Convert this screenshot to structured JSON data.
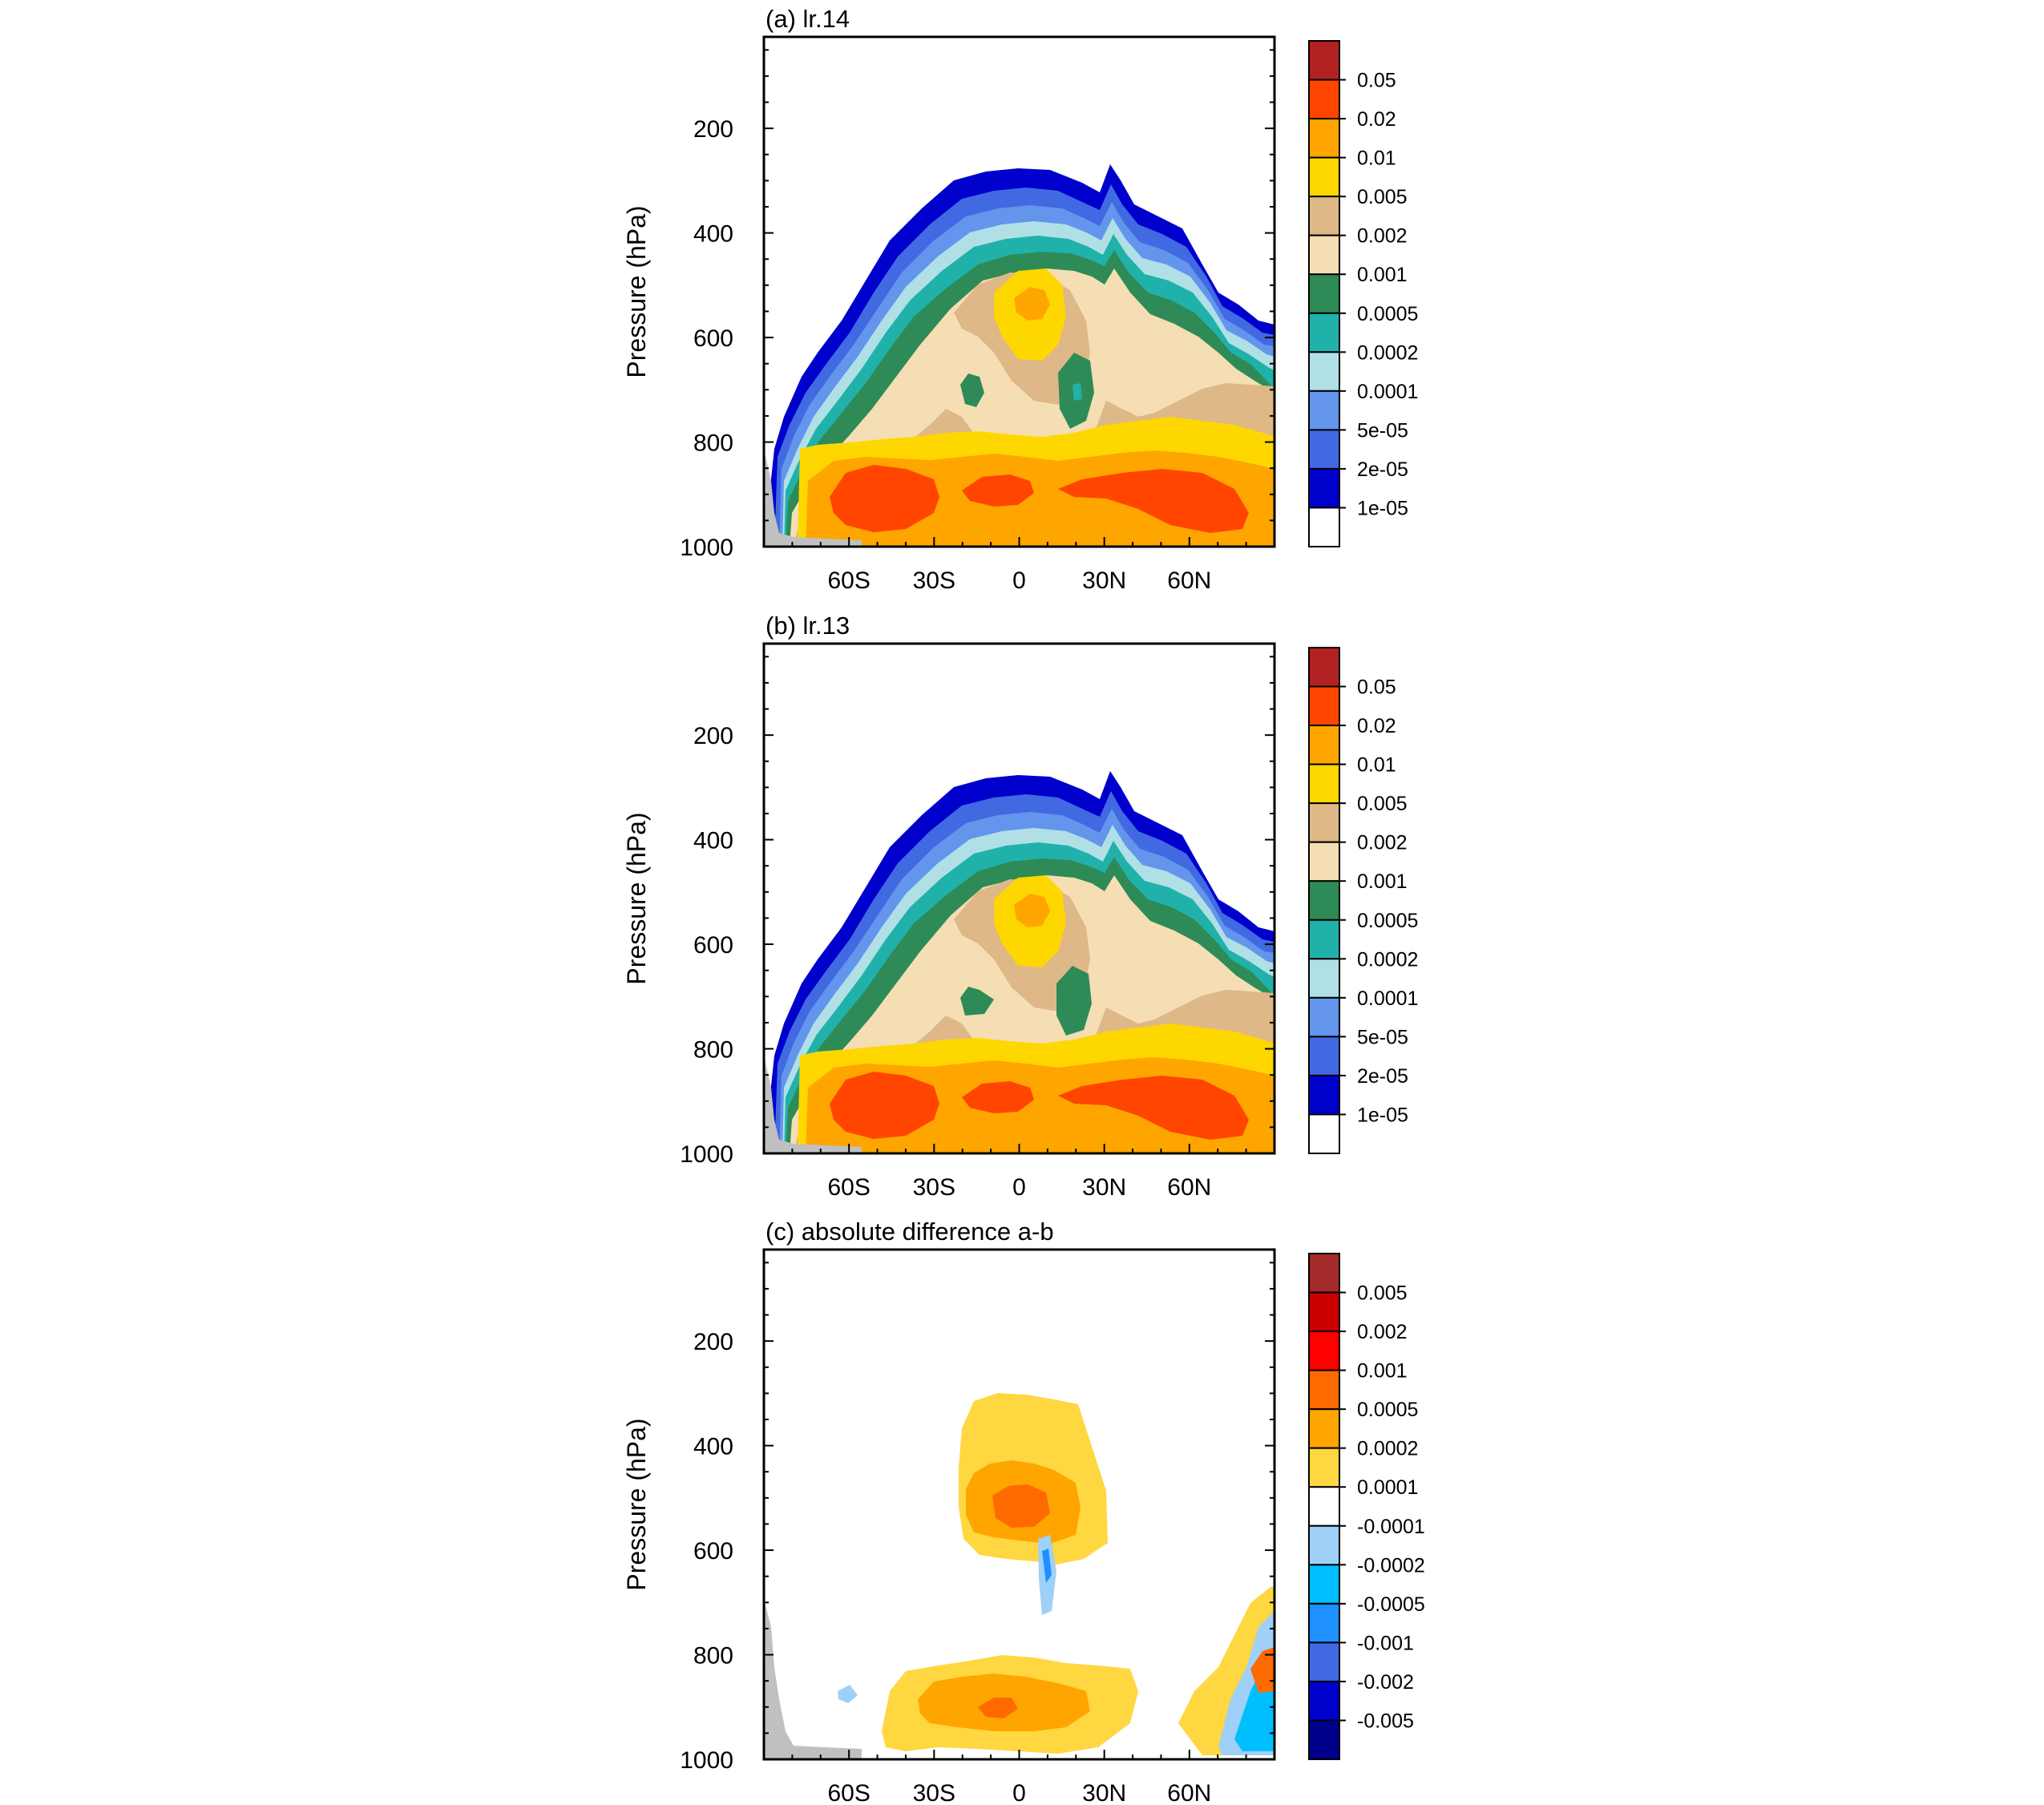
{
  "chart_data": [
    {
      "type": "heatmap",
      "title": "(a) lr.14",
      "ylabel": "Pressure (hPa)",
      "xlabel": "",
      "x_ticks": [
        "60S",
        "30S",
        "0",
        "30N",
        "60N"
      ],
      "x_tick_values": [
        -60,
        -30,
        0,
        30,
        60
      ],
      "xlim": [
        -90,
        90
      ],
      "y_ticks": [
        "200",
        "400",
        "600",
        "800",
        "1000"
      ],
      "y_tick_values": [
        200,
        400,
        600,
        800,
        1000
      ],
      "ylim": [
        25,
        1000
      ],
      "colorbar": {
        "labels": [
          "0.05",
          "0.02",
          "0.01",
          "0.005",
          "0.002",
          "0.001",
          "0.0005",
          "0.0002",
          "0.0001",
          "5e-05",
          "2e-05",
          "1e-05"
        ],
        "colors": [
          "#b22222",
          "#ff4500",
          "#ffa500",
          "#ffd700",
          "#deb887",
          "#f5deb3",
          "#2e8b57",
          "#20b2aa",
          "#b0e0e6",
          "#6495ed",
          "#4169e1",
          "#0000cd",
          "#ffffff"
        ]
      }
    },
    {
      "type": "heatmap",
      "title": "(b) lr.13",
      "ylabel": "Pressure (hPa)",
      "xlabel": "",
      "x_ticks": [
        "60S",
        "30S",
        "0",
        "30N",
        "60N"
      ],
      "x_tick_values": [
        -60,
        -30,
        0,
        30,
        60
      ],
      "xlim": [
        -90,
        90
      ],
      "y_ticks": [
        "200",
        "400",
        "600",
        "800",
        "1000"
      ],
      "y_tick_values": [
        200,
        400,
        600,
        800,
        1000
      ],
      "ylim": [
        25,
        1000
      ],
      "colorbar": {
        "labels": [
          "0.05",
          "0.02",
          "0.01",
          "0.005",
          "0.002",
          "0.001",
          "0.0005",
          "0.0002",
          "0.0001",
          "5e-05",
          "2e-05",
          "1e-05"
        ],
        "colors": [
          "#b22222",
          "#ff4500",
          "#ffa500",
          "#ffd700",
          "#deb887",
          "#f5deb3",
          "#2e8b57",
          "#20b2aa",
          "#b0e0e6",
          "#6495ed",
          "#4169e1",
          "#0000cd",
          "#ffffff"
        ]
      }
    },
    {
      "type": "heatmap",
      "title": "(c) absolute difference a-b",
      "ylabel": "Pressure (hPa)",
      "xlabel": "",
      "x_ticks": [
        "60S",
        "30S",
        "0",
        "30N",
        "60N"
      ],
      "x_tick_values": [
        -60,
        -30,
        0,
        30,
        60
      ],
      "xlim": [
        -90,
        90
      ],
      "y_ticks": [
        "200",
        "400",
        "600",
        "800",
        "1000"
      ],
      "y_tick_values": [
        200,
        400,
        600,
        800,
        1000
      ],
      "ylim": [
        25,
        1000
      ],
      "colorbar": {
        "labels": [
          "0.005",
          "0.002",
          "0.001",
          "0.0005",
          "0.0002",
          "0.0001",
          "-0.0001",
          "-0.0002",
          "-0.0005",
          "-0.001",
          "-0.002",
          "-0.005"
        ],
        "colors": [
          "#a52a2a",
          "#cd0000",
          "#ff0000",
          "#ff6a00",
          "#ffa500",
          "#ffd740",
          "#ffffff",
          "#9fd0f7",
          "#00bfff",
          "#1e90ff",
          "#4169e1",
          "#0000cd",
          "#00008b"
        ]
      }
    }
  ]
}
